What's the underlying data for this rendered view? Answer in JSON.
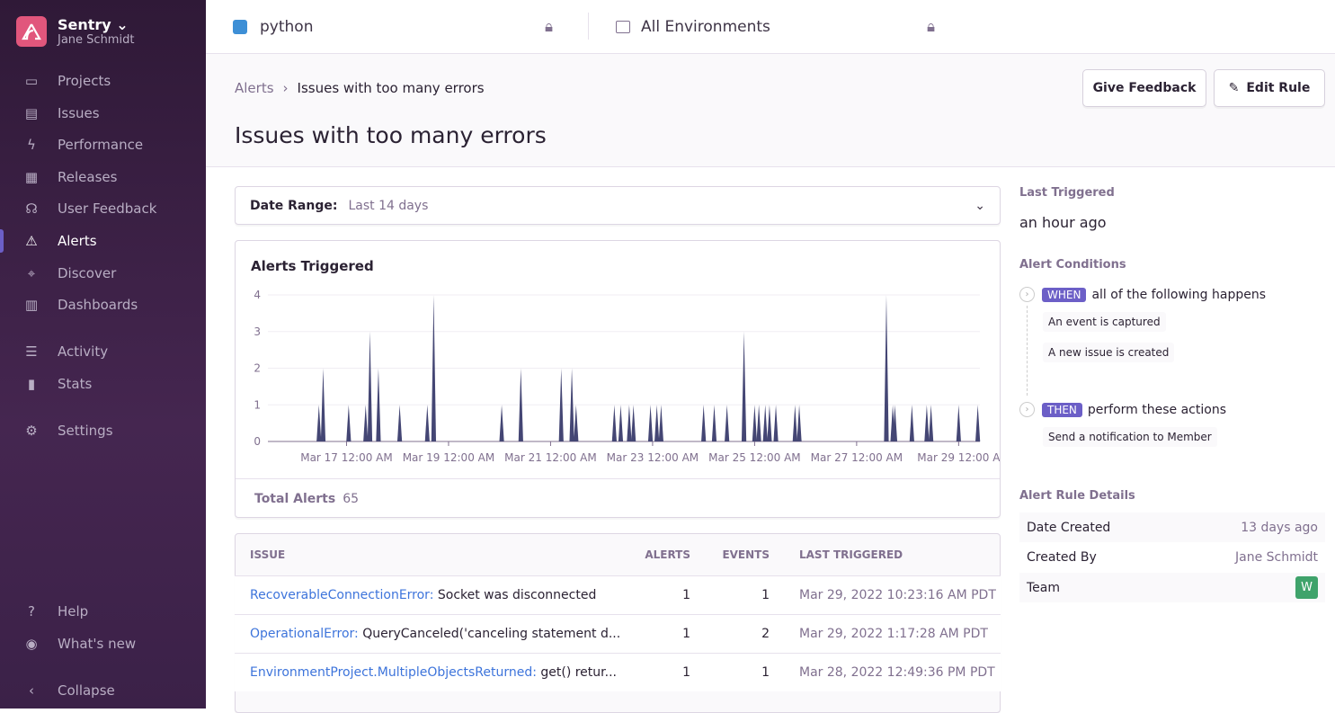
{
  "org": {
    "name": "Sentry",
    "user": "Jane Schmidt"
  },
  "sidebar": {
    "items": [
      {
        "label": "Projects",
        "icon": "projects-icon"
      },
      {
        "label": "Issues",
        "icon": "issues-icon"
      },
      {
        "label": "Performance",
        "icon": "lightning-icon"
      },
      {
        "label": "Releases",
        "icon": "releases-icon"
      },
      {
        "label": "User Feedback",
        "icon": "feedback-icon"
      },
      {
        "label": "Alerts",
        "icon": "siren-icon",
        "active": true
      },
      {
        "label": "Discover",
        "icon": "telescope-icon"
      },
      {
        "label": "Dashboards",
        "icon": "dashboard-icon"
      },
      {
        "label": "Activity",
        "icon": "list-icon"
      },
      {
        "label": "Stats",
        "icon": "stats-icon"
      },
      {
        "label": "Settings",
        "icon": "gear-icon"
      }
    ],
    "bottom": [
      {
        "label": "Help",
        "icon": "help-icon"
      },
      {
        "label": "What's new",
        "icon": "broadcast-icon"
      },
      {
        "label": "Collapse",
        "icon": "collapse-icon"
      }
    ]
  },
  "topbar": {
    "project": "python",
    "environment": "All Environments"
  },
  "header": {
    "breadcrumb": [
      "Alerts",
      "Issues with too many errors"
    ],
    "title": "Issues with too many errors",
    "give_feedback": "Give Feedback",
    "edit_rule": "Edit Rule"
  },
  "date_range": {
    "label": "Date Range:",
    "value": "Last 14 days"
  },
  "chart_data": {
    "type": "area",
    "title": "Alerts Triggered",
    "color": "#444674",
    "ylim": [
      0,
      4
    ],
    "yticks": [
      "0",
      "1",
      "2",
      "3",
      "4"
    ],
    "xrange": [
      "2022-03-15T11:00",
      "2022-03-29T10:00"
    ],
    "xticks": [
      {
        "t": "2022-03-17T00:00",
        "label": "Mar 17 12:00 AM"
      },
      {
        "t": "2022-03-19T00:00",
        "label": "Mar 19 12:00 AM"
      },
      {
        "t": "2022-03-21T00:00",
        "label": "Mar 21 12:00 AM"
      },
      {
        "t": "2022-03-23T00:00",
        "label": "Mar 23 12:00 AM"
      },
      {
        "t": "2022-03-25T00:00",
        "label": "Mar 25 12:00 AM"
      },
      {
        "t": "2022-03-27T00:00",
        "label": "Mar 27 12:00 AM"
      },
      {
        "t": "2022-03-29T00:00",
        "label": "Mar 29 12:00 A"
      }
    ],
    "points": [
      [
        "2022-03-16T11:00",
        1
      ],
      [
        "2022-03-16T13:00",
        2
      ],
      [
        "2022-03-17T01:00",
        1
      ],
      [
        "2022-03-17T09:00",
        1
      ],
      [
        "2022-03-17T11:00",
        3
      ],
      [
        "2022-03-17T15:00",
        2
      ],
      [
        "2022-03-18T01:00",
        1
      ],
      [
        "2022-03-18T14:00",
        1
      ],
      [
        "2022-03-18T17:00",
        4
      ],
      [
        "2022-03-20T01:00",
        1
      ],
      [
        "2022-03-20T10:00",
        2
      ],
      [
        "2022-03-21T05:00",
        2
      ],
      [
        "2022-03-21T10:00",
        2
      ],
      [
        "2022-03-21T12:00",
        1
      ],
      [
        "2022-03-22T06:00",
        1
      ],
      [
        "2022-03-22T09:00",
        1
      ],
      [
        "2022-03-22T13:00",
        1
      ],
      [
        "2022-03-22T15:00",
        1
      ],
      [
        "2022-03-22T23:00",
        1
      ],
      [
        "2022-03-23T02:00",
        1
      ],
      [
        "2022-03-23T04:00",
        1
      ],
      [
        "2022-03-24T00:00",
        1
      ],
      [
        "2022-03-24T05:00",
        1
      ],
      [
        "2022-03-24T11:00",
        1
      ],
      [
        "2022-03-24T19:00",
        3
      ],
      [
        "2022-03-25T00:00",
        1
      ],
      [
        "2022-03-25T02:00",
        1
      ],
      [
        "2022-03-25T05:00",
        1
      ],
      [
        "2022-03-25T07:00",
        1
      ],
      [
        "2022-03-25T10:00",
        1
      ],
      [
        "2022-03-25T19:00",
        1
      ],
      [
        "2022-03-25T21:00",
        1
      ],
      [
        "2022-03-27T14:00",
        4
      ],
      [
        "2022-03-27T17:00",
        1
      ],
      [
        "2022-03-27T18:00",
        1
      ],
      [
        "2022-03-28T02:00",
        1
      ],
      [
        "2022-03-28T09:00",
        1
      ],
      [
        "2022-03-28T11:00",
        1
      ],
      [
        "2022-03-29T00:00",
        1
      ],
      [
        "2022-03-29T09:00",
        1
      ]
    ]
  },
  "total": {
    "label": "Total Alerts",
    "value": "65"
  },
  "table": {
    "headers": [
      "ISSUE",
      "ALERTS",
      "EVENTS",
      "LAST TRIGGERED"
    ],
    "rows": [
      {
        "type": "RecoverableConnectionError:",
        "msg": "Socket was disconnected",
        "alerts": "1",
        "events": "1",
        "last": "Mar 29, 2022 10:23:16 AM PDT"
      },
      {
        "type": "OperationalError:",
        "msg": "QueryCanceled('canceling statement d...",
        "alerts": "1",
        "events": "2",
        "last": "Mar 29, 2022 1:17:28 AM PDT"
      },
      {
        "type": "EnvironmentProject.MultipleObjectsReturned:",
        "msg": "get() retur...",
        "alerts": "1",
        "events": "1",
        "last": "Mar 28, 2022 12:49:36 PM PDT"
      }
    ]
  },
  "right": {
    "last_triggered_label": "Last Triggered",
    "last_triggered": "an hour ago",
    "conditions_label": "Alert Conditions",
    "when": "WHEN",
    "when_text": "all of the following happens",
    "conditions": [
      "An event is captured",
      "A new issue is created"
    ],
    "then": "THEN",
    "then_text": "perform these actions",
    "actions": [
      "Send a notification to Member"
    ],
    "details_label": "Alert Rule Details",
    "details": [
      {
        "k": "Date Created",
        "v": "13 days ago"
      },
      {
        "k": "Created By",
        "v": "Jane Schmidt"
      },
      {
        "k": "Team",
        "v": "W"
      }
    ]
  }
}
